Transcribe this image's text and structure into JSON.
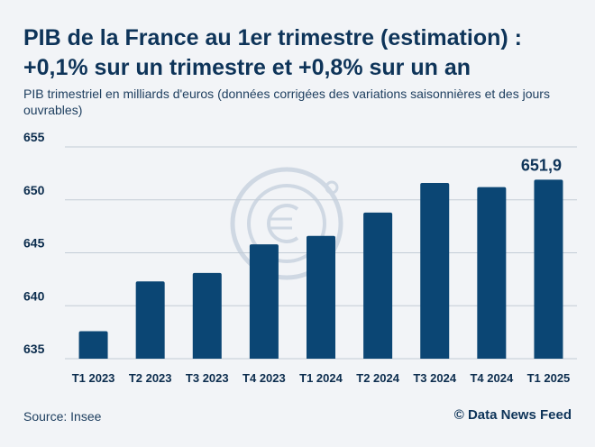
{
  "header": {
    "title_line1": "PIB de la France au 1er trimestre (estimation) :",
    "title_line2": "+0,1% sur un trimestre et +0,8% sur un an",
    "subtitle": "PIB trimestriel en milliards d'euros (données corrigées des variations saisonnières et des jours ouvrables)"
  },
  "footer": {
    "source": "Source: Insee",
    "credit": "© Data News Feed"
  },
  "colors": {
    "bar": "#0b4674",
    "grid": "#c3ccd6",
    "watermark": "#cfd8e3"
  },
  "watermark_icon": "euro-coin-icon",
  "chart_data": {
    "type": "bar",
    "categories": [
      "T1 2023",
      "T2 2023",
      "T3 2023",
      "T4 2023",
      "T1 2024",
      "T2 2024",
      "T3 2024",
      "T4 2024",
      "T1 2025"
    ],
    "values": [
      637.6,
      642.3,
      643.1,
      645.8,
      646.6,
      648.8,
      651.6,
      651.2,
      651.9
    ],
    "ylim": [
      635,
      655
    ],
    "yticks": [
      "635",
      "640",
      "645",
      "650",
      "655"
    ],
    "ytick_values": [
      635,
      640,
      645,
      650,
      655
    ],
    "annotation": "651,9",
    "grid": true,
    "title": "",
    "xlabel": "",
    "ylabel": ""
  }
}
